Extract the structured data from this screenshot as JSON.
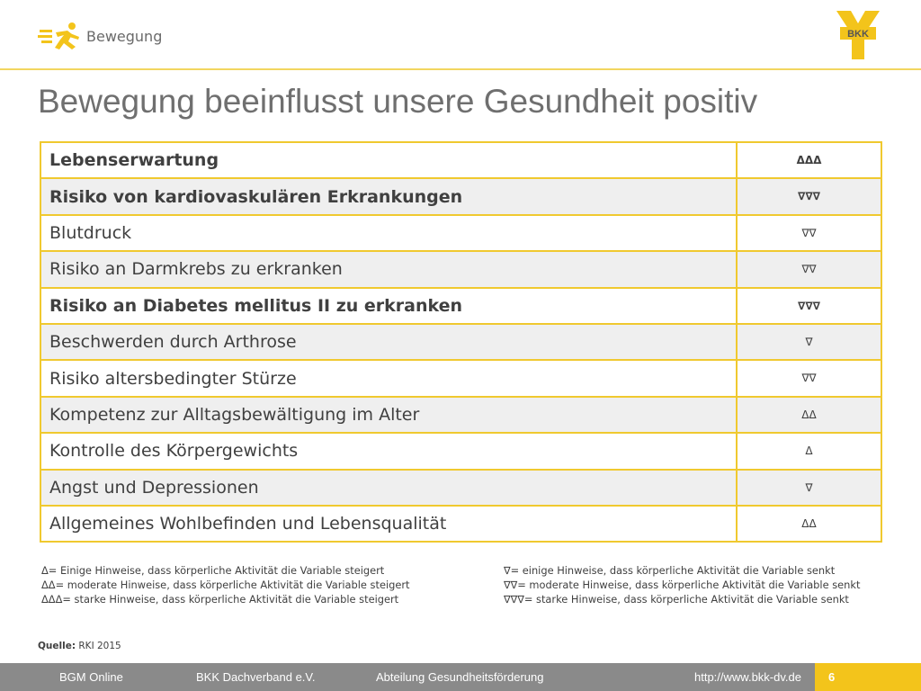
{
  "header": {
    "section": "Bewegung",
    "logo_text": "BKK"
  },
  "title": "Bewegung beeinflusst unsere Gesundheit positiv",
  "colors": {
    "accent": "#f0c92f",
    "logo": "#f3c41b",
    "footer": "#8a8a8a"
  },
  "table": {
    "rows": [
      {
        "label": "Lebenserwartung",
        "value": "ΔΔΔ",
        "bold": true
      },
      {
        "label": "Risiko von kardiovaskulären Erkrankungen",
        "value": "∇∇∇",
        "bold": true
      },
      {
        "label": "Blutdruck",
        "value": "∇∇",
        "bold": false
      },
      {
        "label": "Risiko an Darmkrebs zu erkranken",
        "value": "∇∇",
        "bold": false
      },
      {
        "label": "Risiko an Diabetes mellitus II zu erkranken",
        "value": "∇∇∇",
        "bold": true
      },
      {
        "label": "Beschwerden durch Arthrose",
        "value": "∇",
        "bold": false
      },
      {
        "label": "Risiko altersbedingter Stürze",
        "value": "∇∇",
        "bold": false
      },
      {
        "label": "Kompetenz zur Alltagsbewältigung im Alter",
        "value": "ΔΔ",
        "bold": false
      },
      {
        "label": "Kontrolle des Körpergewichts",
        "value": "Δ",
        "bold": false
      },
      {
        "label": "Angst und Depressionen",
        "value": "∇",
        "bold": false
      },
      {
        "label": "Allgemeines Wohlbefinden und Lebensqualität",
        "value": "ΔΔ",
        "bold": false
      }
    ]
  },
  "legend": {
    "left": [
      "Δ= Einige Hinweise, dass körperliche Aktivität die Variable steigert",
      "ΔΔ= moderate Hinweise, dass körperliche Aktivität die Variable steigert",
      "ΔΔΔ= starke Hinweise, dass körperliche Aktivität die Variable steigert"
    ],
    "right": [
      "∇= einige Hinweise, dass körperliche Aktivität die Variable senkt",
      "∇∇= moderate Hinweise, dass körperliche Aktivität die Variable senkt",
      "∇∇∇= starke Hinweise, dass körperliche Aktivität die Variable senkt"
    ]
  },
  "source": {
    "label": "Quelle:",
    "text": "RKI 2015"
  },
  "footer": {
    "item1": "BGM Online",
    "item2": "BKK Dachverband e.V.",
    "item3": "Abteilung Gesundheitsförderung",
    "url": "http://www.bkk-dv.de",
    "page": "6"
  }
}
